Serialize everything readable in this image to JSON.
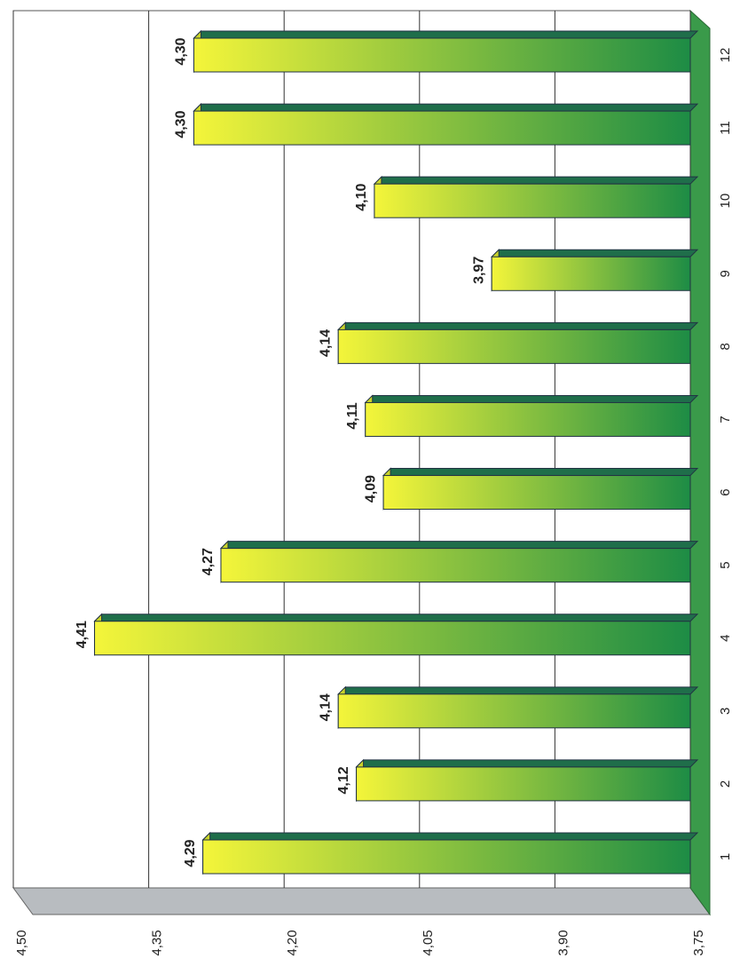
{
  "chart_data": {
    "type": "bar",
    "categories": [
      "1",
      "2",
      "3",
      "4",
      "5",
      "6",
      "7",
      "8",
      "9",
      "10",
      "11",
      "12"
    ],
    "values": [
      4.29,
      4.12,
      4.14,
      4.41,
      4.27,
      4.09,
      4.11,
      4.14,
      3.97,
      4.1,
      4.3,
      4.3
    ],
    "value_labels": [
      "4,29",
      "4,12",
      "4,14",
      "4,41",
      "4,27",
      "4,09",
      "4,11",
      "4,14",
      "3,97",
      "4,10",
      "4,30",
      "4,30"
    ],
    "colors": [
      "#f4f53a",
      "#1d8c45"
    ],
    "ylim": [
      3.75,
      4.5
    ],
    "yticks": [
      {
        "value": 3.75,
        "label": "3,75"
      },
      {
        "value": 3.9,
        "label": "3,90"
      },
      {
        "value": 4.05,
        "label": "4,05"
      },
      {
        "value": 4.2,
        "label": "4,20"
      },
      {
        "value": 4.35,
        "label": "4,35"
      },
      {
        "value": 4.5,
        "label": "4,50"
      }
    ],
    "grid": true
  }
}
